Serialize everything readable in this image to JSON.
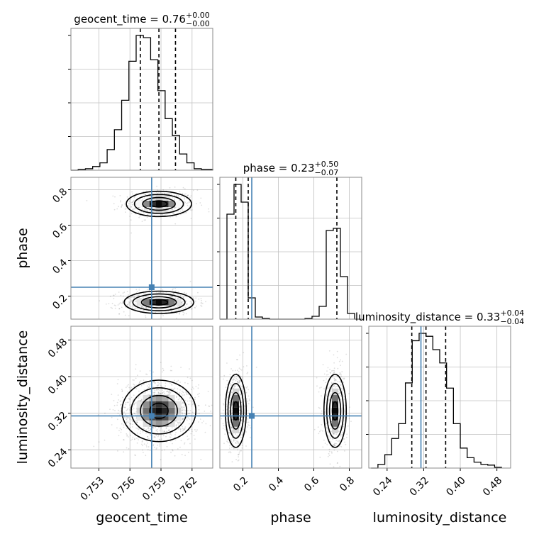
{
  "chart_data": {
    "type": "corner",
    "parameters": [
      "geocent_time",
      "phase",
      "luminosity_distance"
    ],
    "truths": {
      "geocent_time": 0.7581,
      "phase": 0.25,
      "luminosity_distance": 0.314
    },
    "titles": [
      {
        "param": "geocent_time",
        "base": "geocent_time = 0.76",
        "upper": "+0.00",
        "lower": "−0.00"
      },
      {
        "param": "phase",
        "base": "phase = 0.23",
        "upper": "+0.50",
        "lower": "−0.07"
      },
      {
        "param": "luminosity_distance",
        "base": "luminosity_distance = 0.33",
        "upper": "+0.04",
        "lower": "−0.04"
      }
    ],
    "axes": {
      "geocent_time": {
        "range": [
          0.7503,
          0.764
        ],
        "ticks": [
          0.753,
          0.756,
          0.759,
          0.762
        ],
        "tick_labels": [
          "0.753",
          "0.756",
          "0.759",
          "0.762"
        ],
        "label": "geocent_time"
      },
      "phase": {
        "range": [
          0.07,
          0.87
        ],
        "ticks": [
          0.2,
          0.4,
          0.6,
          0.8
        ],
        "tick_labels": [
          "0.2",
          "0.4",
          "0.6",
          "0.8"
        ],
        "label": "phase"
      },
      "luminosity_distance": {
        "range": [
          0.2,
          0.51
        ],
        "ticks": [
          0.24,
          0.32,
          0.4,
          0.48
        ],
        "tick_labels": [
          "0.24",
          "0.32",
          "0.40",
          "0.48"
        ],
        "label": "luminosity_distance"
      }
    },
    "marginals": {
      "geocent_time": {
        "quantiles": [
          0.757,
          0.7588,
          0.7604
        ],
        "bins": [
          0.7503,
          0.751,
          0.7517,
          0.7524,
          0.7531,
          0.7538,
          0.7545,
          0.7552,
          0.7559,
          0.7566,
          0.7573,
          0.758,
          0.7587,
          0.7594,
          0.7601,
          0.7608,
          0.7615,
          0.7622,
          0.7629,
          0.764
        ],
        "counts": [
          0,
          1,
          2,
          5,
          10,
          28,
          55,
          95,
          148,
          183,
          180,
          150,
          108,
          70,
          47,
          22,
          10,
          2,
          1
        ]
      },
      "phase": {
        "quantiles": [
          0.16,
          0.23,
          0.73
        ],
        "bins": [
          0.07,
          0.11,
          0.15,
          0.19,
          0.23,
          0.27,
          0.31,
          0.35,
          0.39,
          0.43,
          0.47,
          0.51,
          0.55,
          0.59,
          0.63,
          0.67,
          0.71,
          0.75,
          0.79,
          0.83,
          0.87
        ],
        "counts": [
          0,
          148,
          190,
          165,
          30,
          3,
          1,
          0,
          0,
          0,
          0,
          0,
          1,
          4,
          18,
          125,
          128,
          60,
          8,
          0
        ]
      },
      "luminosity_distance": {
        "quantiles": [
          0.294,
          0.325,
          0.368
        ],
        "bins": [
          0.205,
          0.22,
          0.235,
          0.25,
          0.265,
          0.28,
          0.295,
          0.31,
          0.325,
          0.34,
          0.355,
          0.37,
          0.385,
          0.4,
          0.415,
          0.43,
          0.445,
          0.46,
          0.475,
          0.49
        ],
        "counts": [
          0,
          5,
          18,
          40,
          60,
          115,
          172,
          182,
          178,
          160,
          142,
          108,
          60,
          27,
          14,
          8,
          5,
          4,
          1
        ]
      }
    },
    "joint": [
      {
        "x": "geocent_time",
        "y": "phase",
        "modes": [
          {
            "cx": 0.7588,
            "cy": 0.72,
            "sx": 0.0015,
            "sy": 0.034,
            "w": 0.45
          },
          {
            "cx": 0.7588,
            "cy": 0.165,
            "sx": 0.0016,
            "sy": 0.03,
            "w": 0.55
          }
        ]
      },
      {
        "x": "geocent_time",
        "y": "luminosity_distance",
        "modes": [
          {
            "cx": 0.7588,
            "cy": 0.325,
            "sx": 0.0017,
            "sy": 0.032,
            "w": 1.0
          }
        ]
      },
      {
        "x": "phase",
        "y": "luminosity_distance",
        "modes": [
          {
            "cx": 0.16,
            "cy": 0.325,
            "sx": 0.028,
            "sy": 0.038,
            "w": 0.55
          },
          {
            "cx": 0.72,
            "cy": 0.325,
            "sx": 0.03,
            "sy": 0.038,
            "w": 0.45
          }
        ]
      }
    ],
    "colors": {
      "truth": "#4682b4",
      "grid": "#c0c0c0",
      "hist": "#000000"
    },
    "grid": true
  }
}
